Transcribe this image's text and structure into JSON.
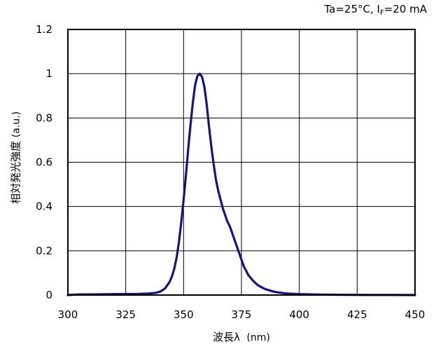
{
  "chart_data": {
    "type": "line",
    "annotation_parts": {
      "prefix": "Ta=25°C, I",
      "sub": "F",
      "suffix": "=20 mA"
    },
    "xlabel_main": "波長λ",
    "xlabel_unit": "(nm)",
    "ylabel_main": "相対発光強度",
    "ylabel_unit": "(a.u.)",
    "xlim": [
      300,
      450
    ],
    "ylim": [
      0,
      1.2
    ],
    "xticks": [
      300,
      325,
      350,
      375,
      400,
      425,
      450
    ],
    "yticks": [
      0,
      0.2,
      0.4,
      0.6,
      0.8,
      1,
      1.2
    ],
    "grid": true,
    "line_color": "#14147a",
    "series": [
      {
        "x": [
          300,
          305,
          310,
          320,
          330,
          335,
          338,
          340,
          342,
          344,
          345,
          346,
          347,
          348,
          349,
          350,
          351,
          352,
          353,
          354,
          355,
          356,
          357,
          358,
          359,
          360,
          361,
          362,
          363,
          364,
          365,
          366,
          367,
          368,
          369,
          370,
          371,
          372,
          373,
          374,
          375,
          376,
          377,
          378,
          380,
          382,
          385,
          388,
          390,
          393,
          395,
          400,
          405,
          410,
          420,
          430,
          440,
          450
        ],
        "y": [
          0.0,
          0.003,
          0.003,
          0.004,
          0.005,
          0.007,
          0.01,
          0.016,
          0.03,
          0.06,
          0.085,
          0.12,
          0.17,
          0.24,
          0.33,
          0.43,
          0.54,
          0.66,
          0.77,
          0.87,
          0.95,
          0.99,
          1.0,
          0.985,
          0.94,
          0.86,
          0.76,
          0.67,
          0.59,
          0.52,
          0.47,
          0.43,
          0.39,
          0.36,
          0.33,
          0.31,
          0.28,
          0.25,
          0.22,
          0.19,
          0.16,
          0.13,
          0.11,
          0.09,
          0.065,
          0.045,
          0.028,
          0.018,
          0.013,
          0.009,
          0.007,
          0.004,
          0.003,
          0.002,
          0.001,
          0.0005,
          0.0003,
          0.0
        ]
      }
    ]
  }
}
